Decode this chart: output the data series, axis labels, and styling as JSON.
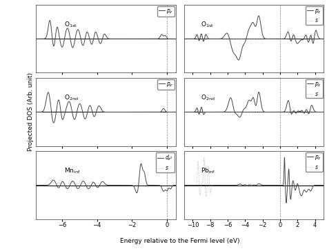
{
  "left_xlim": [
    -7.5,
    0.5
  ],
  "right_xlim": [
    -11,
    5
  ],
  "xlabel": "Energy relative to the Fermi level (eV)",
  "ylabel": "Projected DOS (Arb. unit)",
  "left_xticks": [
    -6,
    -4,
    -2,
    0
  ],
  "right_xticks": [
    -10,
    -8,
    -6,
    -4,
    -2,
    0,
    2,
    4
  ],
  "line_color": "#444444",
  "dot_color": "#aaaaaa",
  "figsize": [
    4.74,
    3.61
  ],
  "dpi": 100
}
